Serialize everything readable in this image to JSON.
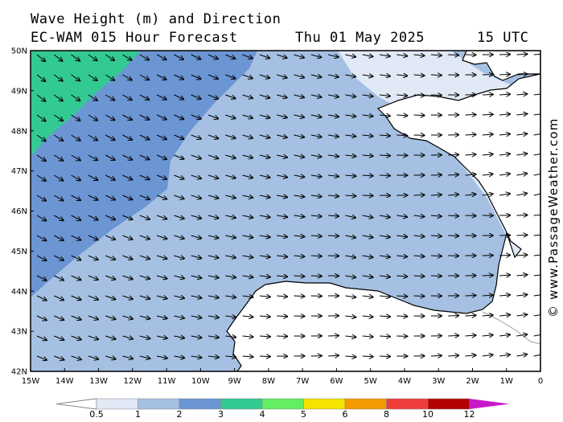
{
  "header": {
    "line1": "Wave Height (m) and Direction",
    "line2": "EC-WAM 015 Hour Forecast",
    "date": "Thu 01 May 2025",
    "hour": "15 UTC"
  },
  "watermark": "© www.PassageWeather.com",
  "map": {
    "lat_range": [
      42,
      50
    ],
    "lon_range": [
      -15,
      0
    ],
    "y_ticks": [
      "50N",
      "49N",
      "48N",
      "47N",
      "46N",
      "45N",
      "44N",
      "43N",
      "42N"
    ],
    "x_ticks": [
      "15W",
      "14W",
      "13W",
      "12W",
      "11W",
      "10W",
      "9W",
      "8W",
      "7W",
      "6W",
      "5W",
      "4W",
      "3W",
      "2W",
      "1W",
      "0"
    ],
    "regions": {
      "band_0_5_1": "#e1e9f6",
      "band_1_2": "#a5c0e2",
      "band_2_3": "#6b95d3",
      "band_3_4": "#33c993"
    },
    "coast_color": "#000000",
    "border_color": "#a0a0a0"
  },
  "colorbar": {
    "labels": [
      "0.5",
      "1",
      "2",
      "3",
      "4",
      "5",
      "6",
      "8",
      "10",
      "12"
    ],
    "colors": [
      "#e1e9f6",
      "#a5c0e2",
      "#6b95d3",
      "#33c993",
      "#63ee63",
      "#f5e300",
      "#f59a00",
      "#ef3c3c",
      "#b40000",
      "#c818c8"
    ]
  }
}
